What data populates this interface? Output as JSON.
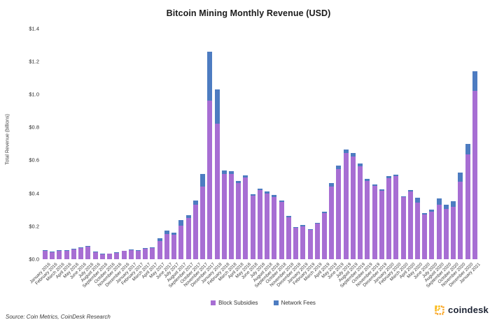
{
  "title": "Bitcoin Mining Monthly Revenue (USD)",
  "y_axis": {
    "label": "Total Revenue (billions)",
    "tick_labels": [
      "$0.0",
      "$0.2",
      "$0.4",
      "$0.6",
      "$0.8",
      "$1.0",
      "$1.2",
      "$1.4"
    ]
  },
  "legend": {
    "items": [
      {
        "label": "Block Subsidies",
        "color": "#a76ed3"
      },
      {
        "label": "Network Fees",
        "color": "#4d7cc1"
      }
    ]
  },
  "source": "Source: Coin Metrics, CoinDesk Research",
  "branding": {
    "name": "coindesk",
    "icon": "coindesk-dashed-square-icon",
    "icon_color": "#F9A11B",
    "text_color": "#1c2333"
  },
  "chart_data": {
    "type": "bar",
    "stacked": true,
    "title": "Bitcoin Mining Monthly Revenue (USD)",
    "xlabel": "",
    "ylabel": "Total Revenue (billions)",
    "ylim": [
      0,
      1.4
    ],
    "y_tick_step": 0.2,
    "grid": false,
    "legend_position": "bottom",
    "categories": [
      "January 2016",
      "February 2016",
      "March 2016",
      "April 2016",
      "May 2016",
      "June 2016",
      "July 2016",
      "August 2016",
      "September 2016",
      "October 2016",
      "November 2016",
      "December 2016",
      "January 2017",
      "February 2017",
      "March 2017",
      "April 2017",
      "May 2017",
      "June 2017",
      "July 2017",
      "August 2017",
      "September 2017",
      "October 2017",
      "November 2017",
      "December 2017",
      "January 2018",
      "February 2018",
      "March 2018",
      "April 2018",
      "May 2018",
      "June 2018",
      "July 2018",
      "August 2018",
      "September 2018",
      "October 2018",
      "November 2018",
      "December 2018",
      "January 2019",
      "February 2019",
      "March 2019",
      "April 2019",
      "May 2019",
      "June 2019",
      "July 2019",
      "August 2019",
      "September 2019",
      "October 2019",
      "November 2019",
      "December 2019",
      "January 2020",
      "February 2020",
      "March 2020",
      "April 2020",
      "May 2020",
      "June 2020",
      "July 2020",
      "August 2020",
      "September 2020",
      "October 2020",
      "November 2020",
      "December 2020",
      "January 2021"
    ],
    "series": [
      {
        "name": "Block Subsidies",
        "color": "#a76ed3",
        "values": [
          0.052,
          0.043,
          0.051,
          0.051,
          0.061,
          0.069,
          0.076,
          0.043,
          0.03,
          0.032,
          0.04,
          0.05,
          0.055,
          0.052,
          0.064,
          0.068,
          0.111,
          0.154,
          0.15,
          0.204,
          0.249,
          0.332,
          0.439,
          0.96,
          0.82,
          0.518,
          0.519,
          0.461,
          0.494,
          0.387,
          0.418,
          0.4,
          0.378,
          0.349,
          0.256,
          0.189,
          0.198,
          0.176,
          0.214,
          0.278,
          0.44,
          0.546,
          0.645,
          0.624,
          0.563,
          0.474,
          0.443,
          0.417,
          0.493,
          0.506,
          0.377,
          0.409,
          0.343,
          0.272,
          0.289,
          0.332,
          0.303,
          0.318,
          0.47,
          0.634,
          1.022
        ]
      },
      {
        "name": "Network Fees",
        "color": "#4d7cc1",
        "values": [
          0.001,
          0.001,
          0.001,
          0.001,
          0.001,
          0.001,
          0.001,
          0.001,
          0.001,
          0.001,
          0.001,
          0.002,
          0.002,
          0.003,
          0.004,
          0.005,
          0.017,
          0.021,
          0.011,
          0.035,
          0.019,
          0.024,
          0.078,
          0.3,
          0.21,
          0.022,
          0.016,
          0.014,
          0.013,
          0.009,
          0.009,
          0.01,
          0.011,
          0.008,
          0.008,
          0.007,
          0.008,
          0.007,
          0.008,
          0.011,
          0.02,
          0.021,
          0.022,
          0.018,
          0.018,
          0.012,
          0.009,
          0.007,
          0.01,
          0.008,
          0.005,
          0.009,
          0.028,
          0.007,
          0.01,
          0.036,
          0.026,
          0.032,
          0.056,
          0.066,
          0.118
        ]
      }
    ]
  }
}
